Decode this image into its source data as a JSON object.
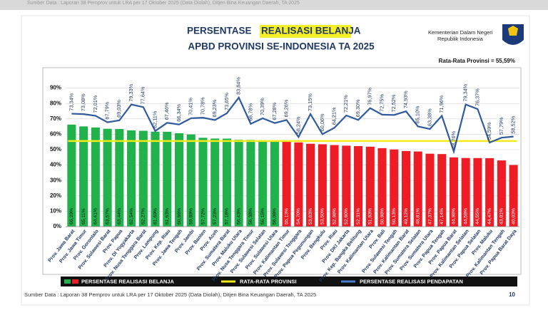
{
  "header": {
    "ministry": "Kementerian Dalam Negeri",
    "country": "Republik Indonesia"
  },
  "footer": {
    "source": "Sumber Data : Laporan 38 Pemprov untuk LRA per 17 Oktober 2025 (Data Diolah), Ditjen Bina Keuangan Daerah, TA 2025",
    "page": "10"
  },
  "chart_data": {
    "type": "bar",
    "title_prefix": "PERSENTASE",
    "title_highlight": "REALISASI BELANJA",
    "subtitle": "APBD PROVINSI SE-INDONESIA TA 2025",
    "categories": [
      "Prov. Jawa Barat",
      "Prov. Jawa Timur",
      "Prov. Gorontalo",
      "Prov. Sulawesi Barat",
      "Prov. Papua",
      "Prov. DI Yogyakarta",
      "Prov. Nusa Tenggara Barat",
      "Prov. Lampung",
      "Prov. Kep. Riau",
      "Prov. Jawa Tengah",
      "Prov. Jambi",
      "Prov. Banten",
      "Prov. Aceh",
      "Prov. Sumatera Barat",
      "Prov. Maluku Utara",
      "Prov. Nusa Tenggara Timur",
      "Prov. Sulawesi Selatan",
      "Prov. Sulawesi Utara",
      "Prov. Kalimantan Timur",
      "Prov. Sulawesi Tenggara",
      "Prov. Papua Pegunungan",
      "Prov. Bengkulu",
      "Prov. Riau",
      "Prov. DKI Jakarta",
      "Prov. Kep. Bangka Belitung",
      "Prov. Kalimantan Utara",
      "Prov. Bali",
      "Prov. Sulawesi Tengah",
      "Prov. Kalimantan Barat",
      "Prov. Sumatera Selatan",
      "Prov. Sumatera Utara",
      "Prov. Papua Tengah",
      "Prov. Papua Barat",
      "Prov. Kalimantan Selatan",
      "Prov. Papua Selatan",
      "Prov. Maluku",
      "Prov. Kalimantan Tengah",
      "Prov. Papua Barat Daya"
    ],
    "series": [
      {
        "name": "PERSENTASE REALISASI BELANJA",
        "type": "bar",
        "color": "#22b24c",
        "color_below": "#ee1c25",
        "values": [
          66.29,
          65.11,
          64.41,
          63.57,
          63.44,
          62.54,
          62.27,
          61.69,
          61.63,
          60.66,
          59.89,
          57.72,
          57.23,
          57.18,
          56.43,
          56.38,
          56.15,
          56.08,
          55.13,
          54.7,
          53.83,
          53.5,
          52.98,
          52.6,
          52.31,
          51.93,
          50.98,
          50.13,
          49.12,
          48.81,
          47.37,
          47.14,
          44.98,
          44.58,
          44.55,
          44.47,
          43.01,
          40.03
        ],
        "value_labels": [
          "66,29%",
          "65,11%",
          "64,41%",
          "63,57%",
          "63,44%",
          "62,54%",
          "62,27%",
          "61,69%",
          "61,63%",
          "60,66%",
          "59,89%",
          "57,72%",
          "57,23%",
          "57,18%",
          "56,43%",
          "56,38%",
          "56,15%",
          "56,08%",
          "55,13%",
          "54,70%",
          "53,83%",
          "53,50%",
          "52,98%",
          "52,60%",
          "52,31%",
          "51,93%",
          "50,98%",
          "50,13%",
          "49,12%",
          "48,81%",
          "47,37%",
          "47,14%",
          "44,98%",
          "44,58%",
          "44,55%",
          "44,47%",
          "43,01%",
          "40,03%"
        ]
      },
      {
        "name": "PERSENTASE REALISASI PENDAPATAN",
        "type": "line",
        "color": "#2f5b9e",
        "values": [
          73.34,
          73.08,
          72.01,
          67.79,
          69.03,
          79.33,
          77.64,
          62.11,
          67.46,
          66.34,
          70.41,
          70.78,
          69.23,
          73.65,
          83.84,
          66.78,
          70.39,
          67.28,
          69.26,
          58.24,
          73.15,
          60.06,
          64.21,
          72.21,
          69.3,
          76.97,
          72.75,
          72.52,
          74.93,
          65.1,
          63.38,
          71.96,
          48.76,
          79.34,
          76.37,
          54.59,
          57.79,
          58.52
        ],
        "value_labels": [
          "73,34%",
          "73,08%",
          "72,01%",
          "67,79%",
          "69,03%",
          "79,33%",
          "77,64%",
          "62,11%",
          "67,46%",
          "66,34%",
          "70,41%",
          "70,78%",
          "69,23%",
          "73,65%",
          "83,84%",
          "66,78%",
          "70,39%",
          "67,28%",
          "69,26%",
          "58,24%",
          "73,15%",
          "60,06%",
          "64,21%",
          "72,21%",
          "69,30%",
          "76,97%",
          "72,75%",
          "72,52%",
          "74,93%",
          "65,10%",
          "63,38%",
          "71,96%",
          "48,76%",
          "79,34%",
          "76,37%",
          "54,59%",
          "57,79%",
          "58,52%"
        ]
      }
    ],
    "average": {
      "name": "RATA-RATA PROVINSI",
      "label": "Rata-Rata Provinsi = 55,59%",
      "value": 55.59,
      "color": "#f3ea1a"
    },
    "ylim": [
      0,
      100
    ],
    "yticks": [
      {
        "value": 0,
        "label": "0%"
      },
      {
        "value": 10,
        "label": "10%"
      },
      {
        "value": 20,
        "label": "20%"
      },
      {
        "value": 30,
        "label": "30%"
      },
      {
        "value": 40,
        "label": "40%"
      },
      {
        "value": 50,
        "label": "50%"
      },
      {
        "value": 60,
        "label": "60%"
      },
      {
        "value": 70,
        "label": "70%"
      },
      {
        "value": 80,
        "label": "80%"
      },
      {
        "value": 90,
        "label": "90%"
      }
    ],
    "grid": true
  }
}
